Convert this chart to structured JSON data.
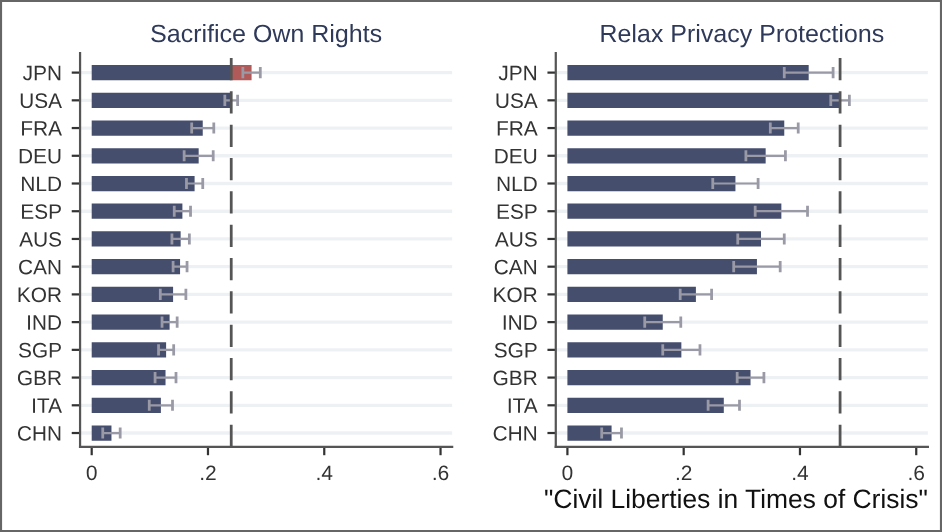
{
  "chart_data": [
    {
      "type": "bar",
      "orientation": "horizontal",
      "stacked": true,
      "title": "Sacrifice Own Rights",
      "categories": [
        "JPN",
        "USA",
        "FRA",
        "DEU",
        "NLD",
        "ESP",
        "AUS",
        "CAN",
        "KOR",
        "IND",
        "SGP",
        "GBR",
        "ITA",
        "CHN"
      ],
      "series": [
        {
          "color": "#464e6e",
          "values": [
            0.24,
            0.24,
            0.191,
            0.184,
            0.177,
            0.156,
            0.153,
            0.152,
            0.14,
            0.134,
            0.128,
            0.127,
            0.119,
            0.034
          ],
          "errors": [
            null,
            0.011,
            0.019,
            0.025,
            0.014,
            0.014,
            0.015,
            0.012,
            0.022,
            0.013,
            0.013,
            0.018,
            0.02,
            0.015
          ]
        },
        {
          "color": "#b05a5a",
          "values": [
            0.035,
            null,
            null,
            null,
            null,
            null,
            null,
            null,
            null,
            null,
            null,
            null,
            null,
            null
          ],
          "errors": [
            0.015,
            null,
            null,
            null,
            null,
            null,
            null,
            null,
            null,
            null,
            null,
            null,
            null,
            null
          ]
        }
      ],
      "xlim": [
        -0.02,
        0.62
      ],
      "xticks": [
        0,
        {
          "value": 0.2,
          "label": ".2"
        },
        {
          "value": 0.4,
          "label": ".4"
        },
        {
          "value": 0.6,
          "label": ".6"
        }
      ],
      "grid": "y",
      "ref_lines": [
        {
          "axis": "x",
          "value": 0.24,
          "color": "#555555",
          "line_style": "dashed"
        }
      ]
    },
    {
      "type": "bar",
      "orientation": "horizontal",
      "title": "Relax Privacy Protections",
      "categories": [
        "JPN",
        "USA",
        "FRA",
        "DEU",
        "NLD",
        "ESP",
        "AUS",
        "CAN",
        "KOR",
        "IND",
        "SGP",
        "GBR",
        "ITA",
        "CHN"
      ],
      "series": [
        {
          "color": "#464e6e",
          "values": [
            0.415,
            0.469,
            0.373,
            0.341,
            0.289,
            0.368,
            0.333,
            0.326,
            0.221,
            0.164,
            0.196,
            0.315,
            0.269,
            0.076
          ],
          "errors": [
            0.042,
            0.016,
            0.024,
            0.034,
            0.039,
            0.045,
            0.04,
            0.04,
            0.027,
            0.031,
            0.032,
            0.023,
            0.027,
            0.017
          ]
        }
      ],
      "xlim": [
        -0.02,
        0.62
      ],
      "xticks": [
        0,
        {
          "value": 0.2,
          "label": ".2"
        },
        {
          "value": 0.4,
          "label": ".4"
        },
        {
          "value": 0.6,
          "label": ".6"
        }
      ],
      "grid": "y",
      "ref_lines": [
        {
          "axis": "x",
          "value": 0.469,
          "color": "#555555",
          "line_style": "dashed"
        }
      ],
      "annotations": [
        "\"Civil Liberties in Times of Crisis\""
      ]
    }
  ]
}
